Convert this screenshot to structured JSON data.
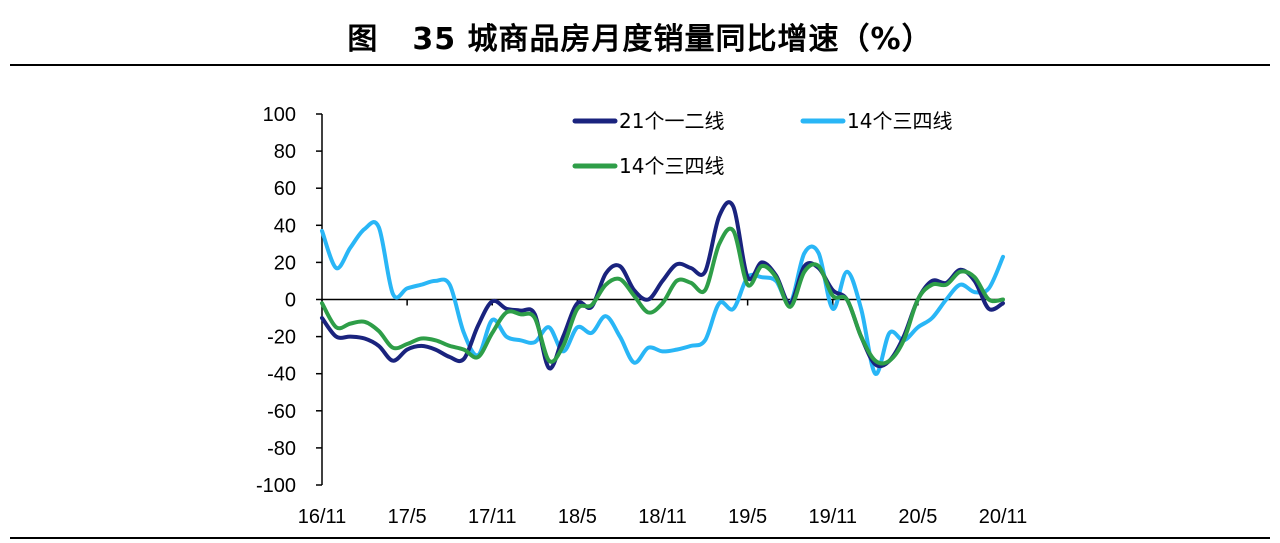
{
  "figure": {
    "label": "图",
    "title": "35 城商品房月度销量同比增速（%）"
  },
  "chart_data": {
    "type": "line",
    "title": "35 城商品房月度销量同比增速（%）",
    "xlabel": "",
    "ylabel": "",
    "ylim": [
      -100,
      100
    ],
    "yticks": [
      100,
      80,
      60,
      40,
      20,
      0,
      -20,
      -40,
      -60,
      -80,
      -100
    ],
    "x_tick_labels": [
      "16/11",
      "17/5",
      "17/11",
      "18/5",
      "18/11",
      "19/5",
      "19/11",
      "20/5",
      "20/11"
    ],
    "legend_position": "top",
    "grid": false,
    "x": [
      "16/11",
      "16/12",
      "17/1",
      "17/2",
      "17/3",
      "17/4",
      "17/5",
      "17/6",
      "17/7",
      "17/8",
      "17/9",
      "17/10",
      "17/11",
      "17/12",
      "18/1",
      "18/2",
      "18/3",
      "18/4",
      "18/5",
      "18/6",
      "18/7",
      "18/8",
      "18/9",
      "18/10",
      "18/11",
      "18/12",
      "19/1",
      "19/2",
      "19/3",
      "19/4",
      "19/5",
      "19/6",
      "19/7",
      "19/8",
      "19/9",
      "19/10",
      "19/11",
      "19/12",
      "20/1",
      "20/2",
      "20/3",
      "20/4",
      "20/5",
      "20/6",
      "20/7",
      "20/8",
      "20/9",
      "20/10",
      "20/11"
    ],
    "series": [
      {
        "name": "21个一二线",
        "color": "#1a237e",
        "values": [
          -10,
          -20,
          -20,
          -21,
          -25,
          -33,
          -27,
          -25,
          -27,
          -31,
          -32,
          -14,
          -1,
          -5,
          -6,
          -8,
          -37,
          -20,
          -2,
          -4,
          14,
          18,
          5,
          0,
          10,
          19,
          17,
          15,
          45,
          50,
          12,
          20,
          13,
          -2,
          18,
          17,
          5,
          0,
          -20,
          -35,
          -33,
          -20,
          0,
          10,
          9,
          16,
          10,
          -5,
          -2
        ]
      },
      {
        "name": "14个三四线",
        "color": "#29b6f6",
        "values": [
          37,
          17,
          28,
          38,
          39,
          3,
          6,
          8,
          10,
          8,
          -18,
          -30,
          -11,
          -20,
          -22,
          -23,
          -15,
          -28,
          -15,
          -18,
          -9,
          -20,
          -34,
          -26,
          -28,
          -27,
          -25,
          -22,
          -2,
          -5,
          12,
          12,
          10,
          -2,
          25,
          25,
          -5,
          15,
          -5,
          -40,
          -18,
          -22,
          -15,
          -10,
          0,
          8,
          4,
          6,
          23
        ]
      },
      {
        "name": "14个三四线",
        "color": "#2e9e48",
        "values": [
          -2,
          -15,
          -13,
          -12,
          -17,
          -26,
          -24,
          -21,
          -22,
          -25,
          -27,
          -31,
          -18,
          -7,
          -8,
          -10,
          -33,
          -25,
          -5,
          -3,
          8,
          11,
          2,
          -7,
          -2,
          10,
          9,
          5,
          30,
          37,
          8,
          18,
          12,
          -4,
          15,
          18,
          2,
          0,
          -20,
          -33,
          -33,
          -22,
          0,
          8,
          8,
          15,
          12,
          0,
          0
        ]
      }
    ]
  }
}
